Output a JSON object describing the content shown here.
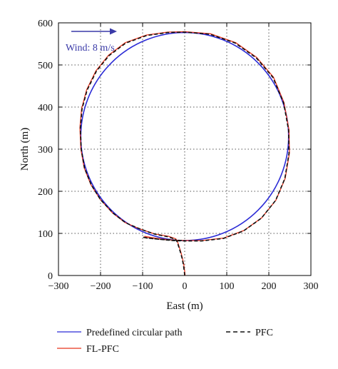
{
  "colors": {
    "predefined": "#2b2bd6",
    "fl_pfc": "#e8341c",
    "pfc": "#111111",
    "wind": "#3a3aa8",
    "grid": "#555555",
    "axis": "#000000"
  },
  "wind_label": "Wind: 8 m/s",
  "chart_data": {
    "type": "line",
    "xlabel": "East (m)",
    "ylabel": "North (m)",
    "xlim": [
      -300,
      300
    ],
    "ylim": [
      0,
      600
    ],
    "xticks": [
      -300,
      -200,
      -100,
      0,
      100,
      200,
      300
    ],
    "yticks": [
      0,
      100,
      200,
      300,
      400,
      500,
      600
    ],
    "xtick_labels": [
      "−300",
      "−200",
      "−100",
      "0",
      "100",
      "200",
      "300"
    ],
    "ytick_labels": [
      "0",
      "100",
      "200",
      "300",
      "400",
      "500",
      "600"
    ],
    "grid": true,
    "legend_position": "bottom",
    "annotations": [
      {
        "text": "Wind: 8 m/s",
        "arrow_direction": "east",
        "location": "top-left"
      }
    ],
    "series": [
      {
        "name": "Predefined circular path",
        "style": "solid",
        "color": "#2b2bd6",
        "shape": "circle",
        "center": [
          0,
          330
        ],
        "radius": 247
      },
      {
        "name": "PFC",
        "style": "dashed",
        "color": "#111111",
        "x": [
          0,
          -1,
          -3,
          -6,
          -10,
          -14,
          -18,
          -22,
          -40,
          -70,
          -105,
          -140,
          -170,
          -200,
          -222,
          -238,
          -246,
          -248,
          -244,
          -232,
          -210,
          -180,
          -140,
          -90,
          -40,
          0,
          60,
          120,
          170,
          210,
          235,
          247,
          248,
          238,
          216,
          182,
          140,
          92,
          40,
          0,
          -30,
          -60,
          -80,
          -100,
          -90,
          -60,
          -30,
          0
        ],
        "y": [
          0,
          10,
          25,
          40,
          55,
          68,
          80,
          86,
          92,
          98,
          110,
          125,
          148,
          180,
          215,
          255,
          300,
          350,
          395,
          440,
          485,
          522,
          552,
          570,
          577,
          578,
          573,
          552,
          517,
          470,
          410,
          345,
          290,
          230,
          178,
          136,
          106,
          88,
          82,
          82,
          83,
          86,
          88,
          91,
          89,
          86,
          84,
          83
        ]
      },
      {
        "name": "FL-PFC",
        "style": "solid",
        "color": "#e8341c",
        "x": [
          1,
          0,
          -2,
          -5,
          -9,
          -13,
          -17,
          -21,
          -38,
          -72,
          -108,
          -142,
          -172,
          -201,
          -223,
          -239,
          -247,
          -249,
          -245,
          -233,
          -211,
          -181,
          -141,
          -91,
          -41,
          0,
          61,
          121,
          171,
          211,
          236,
          248,
          249,
          239,
          217,
          183,
          141,
          93,
          41,
          0,
          -28,
          -58,
          -78,
          -95,
          -84,
          -55,
          -25,
          0
        ],
        "y": [
          0,
          10,
          25,
          40,
          55,
          68,
          80,
          87,
          93,
          99,
          111,
          126,
          149,
          181,
          216,
          256,
          301,
          351,
          396,
          441,
          486,
          523,
          553,
          571,
          578,
          579,
          574,
          553,
          518,
          471,
          411,
          346,
          291,
          231,
          179,
          137,
          107,
          89,
          83,
          83,
          84,
          87,
          90,
          93,
          90,
          86,
          84,
          83
        ]
      }
    ]
  }
}
